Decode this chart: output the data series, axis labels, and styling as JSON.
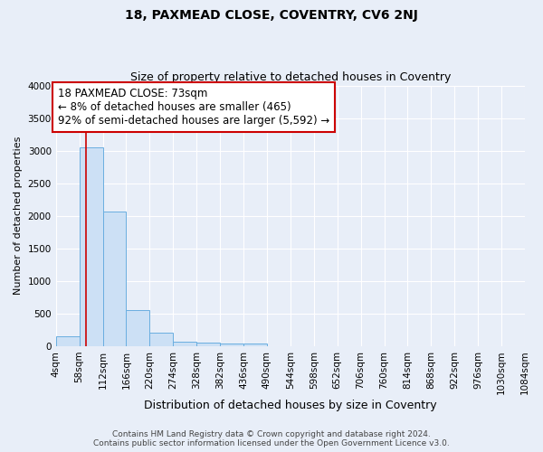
{
  "title1": "18, PAXMEAD CLOSE, COVENTRY, CV6 2NJ",
  "title2": "Size of property relative to detached houses in Coventry",
  "xlabel": "Distribution of detached houses by size in Coventry",
  "ylabel": "Number of detached properties",
  "bin_edges": [
    4,
    58,
    112,
    166,
    220,
    274,
    328,
    382,
    436,
    490,
    544,
    598,
    652,
    706,
    760,
    814,
    868,
    922,
    976,
    1030,
    1084
  ],
  "bar_heights": [
    150,
    3050,
    2070,
    560,
    210,
    75,
    50,
    45,
    45,
    0,
    0,
    0,
    0,
    0,
    0,
    0,
    0,
    0,
    0,
    0
  ],
  "bar_color": "#cce0f5",
  "bar_edge_color": "#6aaee0",
  "background_color": "#e8eef8",
  "plot_bg_color": "#e8eef8",
  "grid_color": "#ffffff",
  "property_size": 73,
  "red_line_color": "#cc0000",
  "annotation_line1": "18 PAXMEAD CLOSE: 73sqm",
  "annotation_line2": "← 8% of detached houses are smaller (465)",
  "annotation_line3": "92% of semi-detached houses are larger (5,592) →",
  "annotation_box_color": "#cc0000",
  "ylim": [
    0,
    4000
  ],
  "yticks": [
    0,
    500,
    1000,
    1500,
    2000,
    2500,
    3000,
    3500,
    4000
  ],
  "footer": "Contains HM Land Registry data © Crown copyright and database right 2024.\nContains public sector information licensed under the Open Government Licence v3.0.",
  "title1_fontsize": 10,
  "title2_fontsize": 9,
  "xlabel_fontsize": 9,
  "ylabel_fontsize": 8,
  "tick_fontsize": 7.5,
  "annotation_fontsize": 8.5,
  "footer_fontsize": 6.5
}
